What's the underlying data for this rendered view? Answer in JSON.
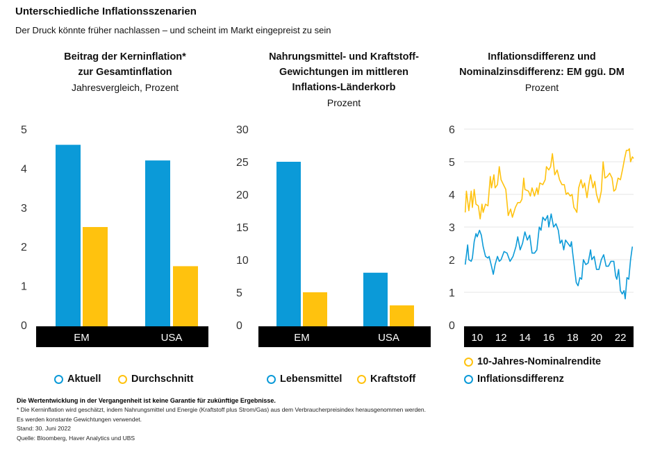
{
  "title": "Unterschiedliche Inflationsszenarien",
  "subtitle": "Der Druck könnte früher nachlassen – und scheint im Markt eingepreist zu sein",
  "colors": {
    "blue": "#0b9ad8",
    "yellow": "#ffc20e"
  },
  "chart_data": [
    {
      "type": "bar",
      "title_lines": [
        "Beitrag der Kerninflation*",
        "zur Gesamtinflation"
      ],
      "unit": "Jahresvergleich, Prozent",
      "categories": [
        "EM",
        "USA"
      ],
      "ylim": [
        0,
        5
      ],
      "yticks": [
        "0",
        "1",
        "2",
        "3",
        "4",
        "5"
      ],
      "series": [
        {
          "name": "Aktuell",
          "values": [
            4.6,
            4.2
          ]
        },
        {
          "name": "Durchschnitt",
          "values": [
            2.5,
            1.5
          ]
        }
      ],
      "legend": "bottom"
    },
    {
      "type": "bar",
      "title_lines": [
        "Nahrungsmittel- und Kraftstoff-",
        "Gewichtungen im mittleren",
        "Inflations-Länderkorb"
      ],
      "unit": "Prozent",
      "categories": [
        "EM",
        "USA"
      ],
      "ylim": [
        0,
        30
      ],
      "yticks": [
        "0",
        "5",
        "10",
        "15",
        "20",
        "25",
        "30"
      ],
      "series": [
        {
          "name": "Lebensmittel",
          "values": [
            25,
            8
          ]
        },
        {
          "name": "Kraftstoff",
          "values": [
            5,
            3
          ]
        }
      ],
      "legend": "bottom"
    },
    {
      "type": "line",
      "title_lines": [
        "Inflationsdifferenz und",
        "Nominalzinsdifferenz: EM ggü. DM"
      ],
      "unit": "Prozent",
      "ylim": [
        0,
        6
      ],
      "yticks": [
        "0",
        "1",
        "2",
        "3",
        "4",
        "5",
        "6"
      ],
      "xlim": [
        2008.9,
        2023.1
      ],
      "xticks": [
        {
          "v": 2010,
          "label": "10"
        },
        {
          "v": 2012,
          "label": "12"
        },
        {
          "v": 2014,
          "label": "14"
        },
        {
          "v": 2016,
          "label": "16"
        },
        {
          "v": 2018,
          "label": "18"
        },
        {
          "v": 2020,
          "label": "20"
        },
        {
          "v": 2022,
          "label": "22"
        }
      ],
      "series": [
        {
          "name": "10-Jahres-Nominalrendite",
          "points": [
            [
              2009.0,
              3.45
            ],
            [
              2009.1,
              4.1
            ],
            [
              2009.3,
              3.5
            ],
            [
              2009.5,
              4.1
            ],
            [
              2009.6,
              3.6
            ],
            [
              2009.75,
              4.15
            ],
            [
              2009.9,
              3.7
            ],
            [
              2010.1,
              3.65
            ],
            [
              2010.25,
              3.25
            ],
            [
              2010.4,
              3.7
            ],
            [
              2010.5,
              3.45
            ],
            [
              2010.7,
              3.7
            ],
            [
              2010.9,
              3.65
            ],
            [
              2011.1,
              4.55
            ],
            [
              2011.2,
              4.2
            ],
            [
              2011.4,
              4.6
            ],
            [
              2011.5,
              4.2
            ],
            [
              2011.7,
              4.3
            ],
            [
              2011.85,
              4.85
            ],
            [
              2012.0,
              4.45
            ],
            [
              2012.2,
              4.3
            ],
            [
              2012.4,
              4.15
            ],
            [
              2012.6,
              3.35
            ],
            [
              2012.8,
              3.55
            ],
            [
              2012.95,
              3.3
            ],
            [
              2013.2,
              3.6
            ],
            [
              2013.4,
              3.75
            ],
            [
              2013.6,
              3.75
            ],
            [
              2013.75,
              3.85
            ],
            [
              2013.9,
              4.5
            ],
            [
              2014.0,
              4.15
            ],
            [
              2014.3,
              4.1
            ],
            [
              2014.45,
              3.95
            ],
            [
              2014.6,
              4.2
            ],
            [
              2014.8,
              3.95
            ],
            [
              2015.0,
              4.2
            ],
            [
              2015.1,
              4.0
            ],
            [
              2015.25,
              4.35
            ],
            [
              2015.5,
              4.3
            ],
            [
              2015.7,
              4.45
            ],
            [
              2015.8,
              4.85
            ],
            [
              2016.0,
              4.75
            ],
            [
              2016.15,
              4.85
            ],
            [
              2016.3,
              5.25
            ],
            [
              2016.5,
              4.6
            ],
            [
              2016.7,
              4.75
            ],
            [
              2016.9,
              4.45
            ],
            [
              2017.1,
              4.3
            ],
            [
              2017.3,
              4.3
            ],
            [
              2017.45,
              4.0
            ],
            [
              2017.6,
              4.05
            ],
            [
              2017.8,
              3.95
            ],
            [
              2017.95,
              4.0
            ],
            [
              2018.1,
              3.6
            ],
            [
              2018.2,
              3.55
            ],
            [
              2018.35,
              3.45
            ],
            [
              2018.5,
              4.2
            ],
            [
              2018.7,
              4.45
            ],
            [
              2018.85,
              4.2
            ],
            [
              2019.0,
              4.35
            ],
            [
              2019.2,
              3.9
            ],
            [
              2019.35,
              4.3
            ],
            [
              2019.5,
              4.6
            ],
            [
              2019.7,
              4.2
            ],
            [
              2019.85,
              4.4
            ],
            [
              2020.0,
              4.0
            ],
            [
              2020.2,
              3.75
            ],
            [
              2020.4,
              4.1
            ],
            [
              2020.55,
              5.0
            ],
            [
              2020.7,
              4.5
            ],
            [
              2020.9,
              4.55
            ],
            [
              2021.1,
              4.65
            ],
            [
              2021.3,
              4.5
            ],
            [
              2021.45,
              4.1
            ],
            [
              2021.6,
              4.15
            ],
            [
              2021.8,
              4.5
            ],
            [
              2022.0,
              4.45
            ],
            [
              2022.2,
              4.8
            ],
            [
              2022.35,
              5.1
            ],
            [
              2022.5,
              5.35
            ],
            [
              2022.65,
              5.35
            ],
            [
              2022.75,
              5.4
            ],
            [
              2022.85,
              5.0
            ],
            [
              2023.0,
              5.15
            ],
            [
              2023.1,
              5.1
            ]
          ]
        },
        {
          "name": "Inflationsdifferenz",
          "points": [
            [
              2009.0,
              1.85
            ],
            [
              2009.2,
              2.45
            ],
            [
              2009.3,
              2.0
            ],
            [
              2009.5,
              1.95
            ],
            [
              2009.6,
              2.05
            ],
            [
              2009.75,
              2.55
            ],
            [
              2009.9,
              2.8
            ],
            [
              2010.0,
              2.7
            ],
            [
              2010.2,
              2.9
            ],
            [
              2010.35,
              2.75
            ],
            [
              2010.5,
              2.4
            ],
            [
              2010.7,
              2.1
            ],
            [
              2010.9,
              2.05
            ],
            [
              2011.0,
              2.1
            ],
            [
              2011.2,
              1.8
            ],
            [
              2011.35,
              1.55
            ],
            [
              2011.5,
              1.85
            ],
            [
              2011.7,
              2.1
            ],
            [
              2011.85,
              1.95
            ],
            [
              2012.0,
              2.0
            ],
            [
              2012.25,
              2.25
            ],
            [
              2012.5,
              2.2
            ],
            [
              2012.75,
              1.95
            ],
            [
              2013.0,
              2.1
            ],
            [
              2013.25,
              2.4
            ],
            [
              2013.4,
              2.7
            ],
            [
              2013.6,
              2.3
            ],
            [
              2013.8,
              2.5
            ],
            [
              2014.0,
              2.85
            ],
            [
              2014.2,
              2.6
            ],
            [
              2014.4,
              2.75
            ],
            [
              2014.6,
              2.2
            ],
            [
              2014.8,
              2.2
            ],
            [
              2015.0,
              2.3
            ],
            [
              2015.2,
              3.0
            ],
            [
              2015.35,
              2.9
            ],
            [
              2015.5,
              3.3
            ],
            [
              2015.7,
              3.2
            ],
            [
              2015.9,
              3.35
            ],
            [
              2016.0,
              3.0
            ],
            [
              2016.2,
              3.4
            ],
            [
              2016.4,
              3.0
            ],
            [
              2016.6,
              3.1
            ],
            [
              2016.8,
              2.9
            ],
            [
              2016.95,
              2.5
            ],
            [
              2017.1,
              2.6
            ],
            [
              2017.25,
              2.3
            ],
            [
              2017.4,
              2.6
            ],
            [
              2017.6,
              2.5
            ],
            [
              2017.8,
              2.4
            ],
            [
              2017.9,
              2.55
            ],
            [
              2018.0,
              2.2
            ],
            [
              2018.2,
              1.6
            ],
            [
              2018.3,
              1.3
            ],
            [
              2018.45,
              1.2
            ],
            [
              2018.6,
              1.45
            ],
            [
              2018.75,
              1.4
            ],
            [
              2018.9,
              2.0
            ],
            [
              2019.1,
              1.85
            ],
            [
              2019.3,
              1.9
            ],
            [
              2019.5,
              2.3
            ],
            [
              2019.6,
              2.0
            ],
            [
              2019.8,
              2.1
            ],
            [
              2020.0,
              1.7
            ],
            [
              2020.2,
              1.7
            ],
            [
              2020.4,
              2.0
            ],
            [
              2020.6,
              2.15
            ],
            [
              2020.8,
              1.8
            ],
            [
              2021.0,
              1.8
            ],
            [
              2021.2,
              1.95
            ],
            [
              2021.45,
              1.95
            ],
            [
              2021.6,
              1.5
            ],
            [
              2021.7,
              1.4
            ],
            [
              2021.85,
              1.7
            ],
            [
              2022.0,
              1.05
            ],
            [
              2022.15,
              0.95
            ],
            [
              2022.3,
              1.05
            ],
            [
              2022.4,
              0.8
            ],
            [
              2022.55,
              1.45
            ],
            [
              2022.7,
              1.4
            ],
            [
              2022.85,
              2.0
            ],
            [
              2023.0,
              2.4
            ]
          ]
        }
      ],
      "legend": "bottom"
    }
  ],
  "footer": {
    "disclaimer": "Die Wertentwicklung in der Vergangenheit ist keine Garantie für zukünftige Ergebnisse.",
    "note": "* Die Kerninflation wird geschätzt, indem Nahrungsmittel und Energie (Kraftstoff plus Strom/Gas) aus dem Verbraucherpreisindex herausgenommen werden.",
    "note2": "Es werden konstante Gewichtungen verwendet.",
    "date": "Stand: 30. Juni 2022",
    "source": "Quelle: Bloomberg, Haver Analytics und UBS"
  }
}
